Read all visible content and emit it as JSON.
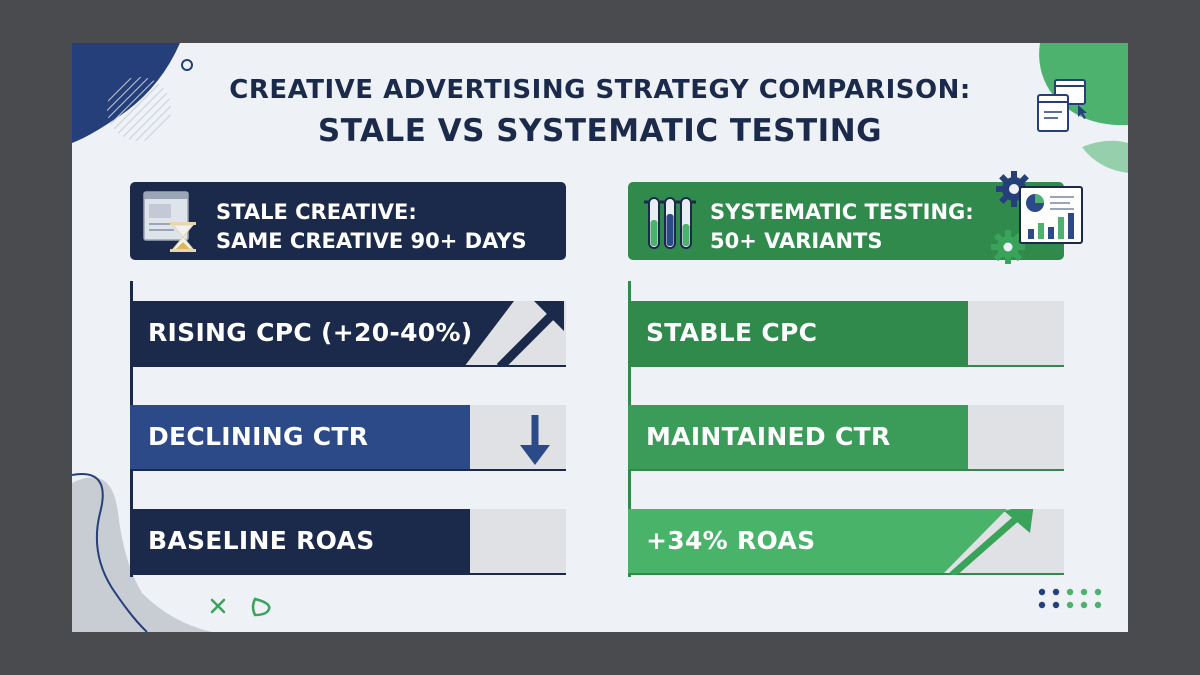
{
  "title": {
    "line1": "CREATIVE ADVERTISING STRATEGY COMPARISON:",
    "line2": "STALE VS SYSTEMATIC TESTING"
  },
  "left": {
    "header": {
      "line1": "STALE CREATIVE:",
      "line2": "SAME CREATIVE 90+ DAYS",
      "icon": "hourglass-ad-icon"
    },
    "color": "#1b2a4a",
    "bars": [
      {
        "label": "RISING CPC (+20-40%)",
        "level": 0.88,
        "color": "#1b2a4a",
        "trend": "up-arrow-icon"
      },
      {
        "label": "DECLINING CTR",
        "level": 0.78,
        "color": "#2c4a87",
        "trend": "down-arrow-icon"
      },
      {
        "label": "BASELINE ROAS",
        "level": 0.78,
        "color": "#1b2a4a",
        "trend": ""
      }
    ]
  },
  "right": {
    "header": {
      "line1": "SYSTEMATIC TESTING:",
      "line2": "50+ VARIANTS",
      "icon": "test-tubes-icon"
    },
    "color": "#2f8a4b",
    "bars": [
      {
        "label": "STABLE CPC",
        "level": 0.78,
        "color": "#2f8a4b",
        "trend": ""
      },
      {
        "label": "MAINTAINED CTR",
        "level": 0.78,
        "color": "#3a9c58",
        "trend": ""
      },
      {
        "label": "+34% ROAS",
        "level": 0.88,
        "color": "#49b36a",
        "trend": "up-arrow-icon"
      }
    ]
  },
  "track_color": "#dfe1e4"
}
